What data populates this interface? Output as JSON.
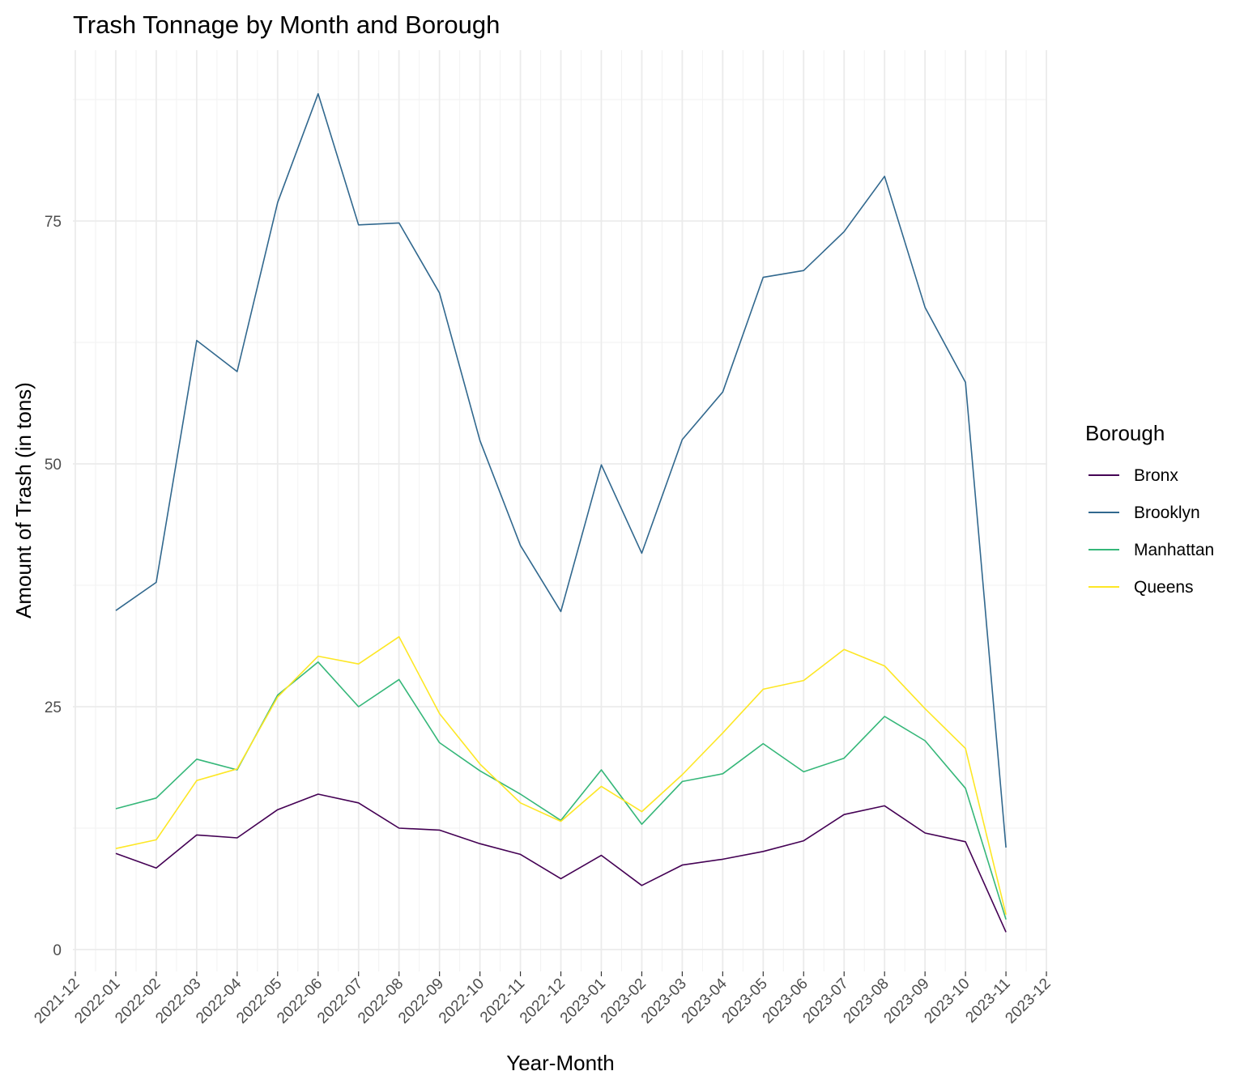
{
  "chart_data": {
    "type": "line",
    "title": "Trash Tonnage by Month and Borough",
    "xlabel": "Year-Month",
    "ylabel": "Amount of Trash (in tons)",
    "legend_title": "Borough",
    "legend_position": "right",
    "grid": true,
    "x_ticks": [
      "2021-12",
      "2022-01",
      "2022-02",
      "2022-03",
      "2022-04",
      "2022-05",
      "2022-06",
      "2022-07",
      "2022-08",
      "2022-09",
      "2022-10",
      "2022-11",
      "2022-12",
      "2023-01",
      "2023-02",
      "2023-03",
      "2023-04",
      "2023-05",
      "2023-06",
      "2023-07",
      "2023-08",
      "2023-09",
      "2023-10",
      "2023-11",
      "2023-12"
    ],
    "x": [
      "2022-01",
      "2022-02",
      "2022-03",
      "2022-04",
      "2022-05",
      "2022-06",
      "2022-07",
      "2022-08",
      "2022-09",
      "2022-10",
      "2022-11",
      "2022-12",
      "2023-01",
      "2023-02",
      "2023-03",
      "2023-04",
      "2023-05",
      "2023-06",
      "2023-07",
      "2023-08",
      "2023-09",
      "2023-10",
      "2023-11"
    ],
    "y_ticks": [
      0,
      25,
      50,
      75
    ],
    "ylim": [
      -2.5,
      92
    ],
    "series": [
      {
        "name": "Bronx",
        "color": "#440154",
        "values": [
          9.9,
          8.4,
          11.8,
          11.5,
          14.4,
          16.0,
          15.1,
          12.5,
          12.3,
          10.9,
          9.8,
          7.3,
          9.7,
          6.6,
          8.7,
          9.3,
          10.1,
          11.2,
          13.9,
          14.8,
          12.0,
          11.1,
          1.8
        ]
      },
      {
        "name": "Brooklyn",
        "color": "#31688E",
        "values": [
          34.9,
          37.8,
          62.7,
          59.5,
          76.9,
          88.1,
          74.6,
          74.8,
          67.6,
          52.4,
          41.6,
          34.8,
          49.9,
          40.8,
          52.5,
          57.4,
          69.2,
          69.9,
          73.9,
          79.6,
          66.1,
          58.4,
          10.5
        ]
      },
      {
        "name": "Manhattan",
        "color": "#35B779",
        "values": [
          14.5,
          15.6,
          19.6,
          18.5,
          26.2,
          29.6,
          25.0,
          27.8,
          21.3,
          18.4,
          16.0,
          13.3,
          18.5,
          12.9,
          17.3,
          18.1,
          21.2,
          18.3,
          19.7,
          24.0,
          21.5,
          16.6,
          3.1
        ]
      },
      {
        "name": "Queens",
        "color": "#FDE725",
        "values": [
          10.4,
          11.3,
          17.4,
          18.6,
          26.0,
          30.2,
          29.4,
          32.2,
          24.3,
          19.1,
          15.1,
          13.2,
          16.8,
          14.2,
          18.0,
          22.3,
          26.8,
          27.7,
          30.9,
          29.2,
          24.8,
          20.7,
          3.6
        ]
      }
    ]
  }
}
